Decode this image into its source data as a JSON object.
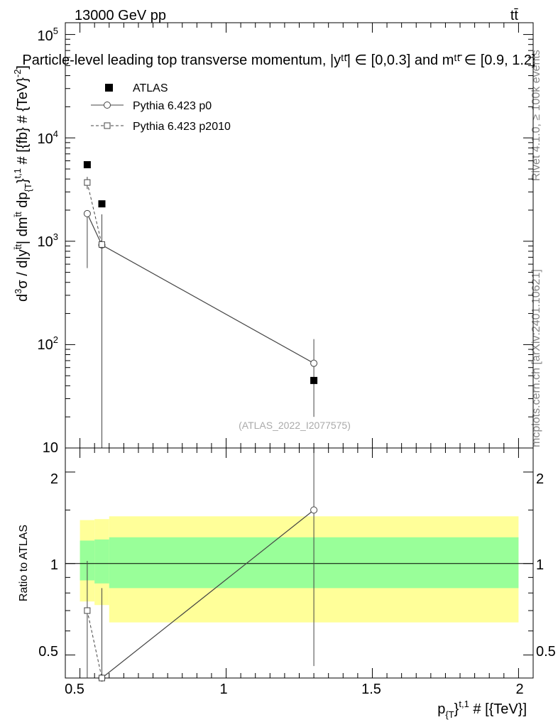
{
  "header": {
    "energy_label": "13000 GeV pp",
    "process_label": "tt̄",
    "title": "Particle-level leading top transverse momentum, |yᵗᵗ̄| ∈ [0,0.3] and mᵗᵗ̄ ∈ [0.9, 1.2]"
  },
  "side_labels": {
    "rivet": "Rivet 4.1.0, ≥ 100k events",
    "mcplots": "mcplots.cern.ch [arXiv:2401.10621]"
  },
  "watermark": "(ATLAS_2022_I2077575)",
  "legend": {
    "items": [
      {
        "label": "ATLAS",
        "marker": "filled-square",
        "line": "none"
      },
      {
        "label": "Pythia 6.423 p0",
        "marker": "open-circle",
        "line": "solid"
      },
      {
        "label": "Pythia 6.423 p2010",
        "marker": "open-square",
        "line": "dashed"
      }
    ]
  },
  "axes": {
    "main_ylabel_parts": {
      "d": "d",
      "sup3": "3",
      "sigma_dy": "σ / d|y",
      "sup_tt1": "t̄t",
      "dm": "| dm",
      "sup_tt2": "t̄t",
      "dp": " dp",
      "sub_T": "{T",
      "brace": "}",
      "sup_t1": "t,1",
      "unit": " # [{fb} # {TeV}",
      "sup_m2": "-2",
      "close": "]"
    },
    "ratio_ylabel": "Ratio to ATLAS",
    "xlabel_parts": {
      "p": "p",
      "sub_T": "{T",
      "brace": "}",
      "sup_t1": "t,1",
      "unit": " # [{TeV}]"
    },
    "x_ticks": [
      "0.5",
      "1",
      "1.5",
      "2"
    ],
    "main_y_ticks": [
      "10",
      "10",
      "10",
      "10",
      "10"
    ],
    "main_y_tick_exps": [
      "",
      "2",
      "3",
      "4",
      "5"
    ],
    "ratio_y_ticks": [
      "0.5",
      "1",
      "2"
    ]
  },
  "colors": {
    "band_outer": "#ffff99",
    "band_inner": "#99ff99",
    "data": "#000000",
    "mc": "#444444",
    "side_text": "#888888"
  },
  "chart_data": [
    {
      "type": "scatter",
      "panel": "main",
      "title": "Particle-level leading top transverse momentum, |yᵗᵗ̄| ∈ [0,0.3] and mᵗᵗ̄ ∈ [0.9, 1.2]",
      "xlabel": "p_{T}^{t,1} # [{TeV}]",
      "ylabel": "d³σ / d|yᵗᵗ̄| dmᵗᵗ̄ dp_{T}^{t,1} # [{fb} # {TeV}⁻²]",
      "xlim": [
        0.45,
        2.05
      ],
      "ylim": [
        10,
        130000
      ],
      "yscale": "log",
      "series": [
        {
          "name": "ATLAS",
          "x": [
            0.525,
            0.575,
            1.3
          ],
          "y": [
            5500,
            2300,
            45
          ]
        },
        {
          "name": "Pythia 6.423 p0",
          "x": [
            0.525,
            0.575,
            1.3
          ],
          "y": [
            1850,
            920,
            66
          ],
          "yerr_low": [
            1300,
            920,
            46
          ],
          "yerr_high": [
            0,
            900,
            47
          ]
        },
        {
          "name": "Pythia 6.423 p2010",
          "x": [
            0.525,
            0.575
          ],
          "y": [
            3700,
            930
          ],
          "yerr_low": [
            500,
            500
          ],
          "yerr_high": [
            500,
            500
          ]
        }
      ]
    },
    {
      "type": "line",
      "panel": "ratio",
      "ylabel": "Ratio to ATLAS",
      "xlim": [
        0.45,
        2.05
      ],
      "ylim": [
        0.42,
        2.4
      ],
      "yscale": "log",
      "bands": {
        "x_edges": [
          0.5,
          0.55,
          0.6,
          2.0
        ],
        "outer_low": [
          0.75,
          0.73,
          0.64
        ],
        "outer_high": [
          1.39,
          1.4,
          1.43
        ],
        "inner_low": [
          0.88,
          0.86,
          0.83
        ],
        "inner_high": [
          1.19,
          1.2,
          1.22
        ]
      },
      "series": [
        {
          "name": "Pythia 6.423 p0",
          "x": [
            0.575,
            1.3
          ],
          "y": [
            0.4,
            1.5
          ],
          "yerr_low": [
            0.4,
            1.04
          ],
          "yerr_high": [
            0.43,
            1.0
          ]
        },
        {
          "name": "Pythia 6.423 p2010",
          "x": [
            0.525,
            0.575
          ],
          "y": [
            0.7,
            0.4
          ],
          "yerr_low": [
            0.3,
            0.1
          ],
          "yerr_high": [
            0.32,
            0.1
          ]
        }
      ]
    }
  ]
}
